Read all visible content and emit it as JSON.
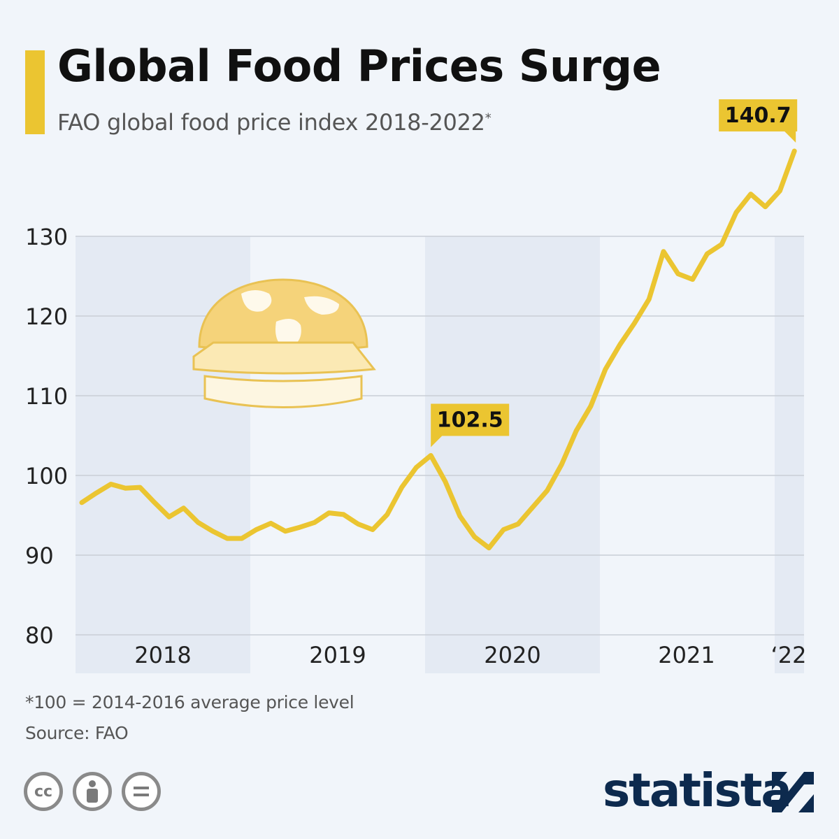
{
  "header": {
    "title": "Global Food Prices Surge",
    "subtitle": "FAO global food price index 2018-2022",
    "subtitle_mark": "*"
  },
  "footer": {
    "note": "*100 = 2014-2016 average price level",
    "source": "Source: FAO",
    "brand": "statista"
  },
  "colors": {
    "accent": "#ebc531",
    "line": "#ebc531",
    "band": "#e4eaf3",
    "brand": "#0d2a4e"
  },
  "icons": [
    "burger-globe-icon",
    "cc-icon",
    "attribution-icon",
    "no-derivatives-icon",
    "statista-logo-icon"
  ],
  "chart_data": {
    "type": "line",
    "title": "Global Food Prices Surge",
    "subtitle": "FAO global food price index 2018-2022*",
    "ylim": [
      80,
      141
    ],
    "y_ticks": [
      80,
      90,
      100,
      110,
      120,
      130
    ],
    "x_labels": [
      "2018",
      "2019",
      "2020",
      "2021",
      "‘22"
    ],
    "grid": true,
    "series": [
      {
        "values": [
          96.6,
          97.8,
          98.9,
          98.4,
          98.5,
          96.6,
          94.8,
          95.9,
          94.1,
          93.0,
          92.1,
          92.1,
          93.2,
          94.0,
          93.0,
          93.5,
          94.1,
          95.3,
          95.1,
          93.9,
          93.2,
          95.1,
          98.5,
          101.0,
          102.5,
          99.2,
          94.9,
          92.3,
          90.9,
          93.2,
          93.9,
          96.0,
          98.1,
          101.4,
          105.6,
          108.7,
          113.3,
          116.4,
          119.1,
          122.1,
          128.1,
          125.3,
          124.6,
          127.8,
          129.0,
          133.0,
          135.3,
          133.7,
          135.7,
          140.7
        ]
      }
    ],
    "annotations": [
      {
        "index": 24,
        "label": "102.5"
      },
      {
        "index": 49,
        "label": "140.7"
      }
    ]
  }
}
